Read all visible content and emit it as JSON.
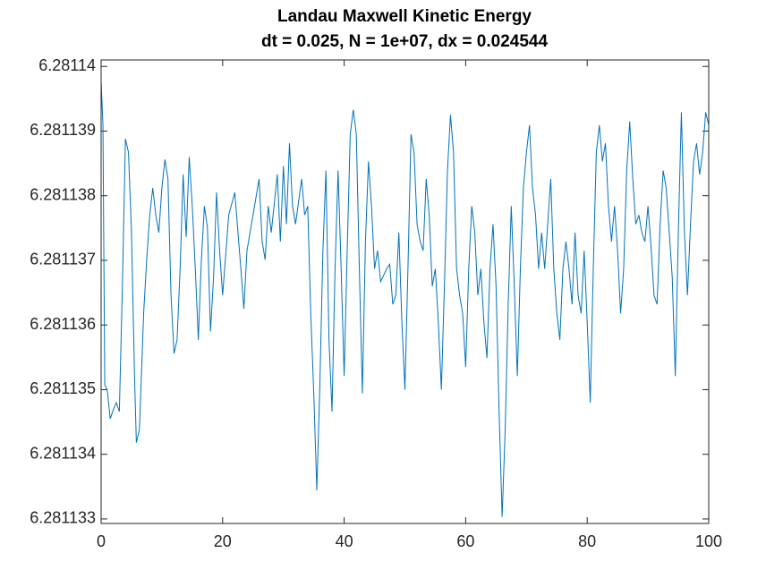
{
  "chart_data": {
    "type": "line",
    "title": "Landau Maxwell Kinetic Energy",
    "subtitle": "dt = 0.025, N = 1e+07, dx = 0.024544",
    "xlim": [
      0,
      100
    ],
    "xticks": [
      0,
      20,
      40,
      60,
      80,
      100
    ],
    "ylim": [
      6.28113293,
      6.2811401
    ],
    "yticks": [
      6.281133,
      6.281134,
      6.281135,
      6.281136,
      6.281137,
      6.281138,
      6.281139,
      6.28114
    ],
    "grid": false,
    "x": [
      0,
      0.3,
      0.6,
      1,
      1.5,
      2,
      2.5,
      3,
      3.5,
      4,
      4.5,
      5,
      5.5,
      5.8,
      6.3,
      7,
      7.5,
      8,
      8.5,
      9,
      9.5,
      10,
      10.5,
      11,
      11.5,
      12,
      12.5,
      13,
      13.5,
      14,
      14.5,
      15,
      15.5,
      16,
      16.5,
      17,
      17.5,
      18,
      18.5,
      19,
      19.5,
      20,
      21,
      22,
      23,
      23.5,
      24,
      25,
      26,
      26.5,
      27,
      27.5,
      28,
      29,
      29.5,
      30,
      30.5,
      31,
      31.5,
      32,
      33,
      33.5,
      34,
      34.5,
      35,
      35.5,
      36,
      36.5,
      37,
      37.5,
      38,
      38.5,
      39,
      39.5,
      40,
      40.5,
      41,
      41.5,
      42,
      42.5,
      43,
      43.5,
      44,
      44.5,
      45,
      45.5,
      46,
      47,
      47.5,
      48,
      48.5,
      49,
      49.5,
      50,
      50.5,
      51,
      51.5,
      52,
      52.5,
      53,
      53.5,
      54,
      54.5,
      55,
      55.5,
      56,
      56.5,
      57,
      57.5,
      58,
      58.5,
      59,
      59.5,
      60,
      60.5,
      61,
      61.5,
      62,
      62.5,
      63,
      63.5,
      64,
      64.5,
      65,
      65.5,
      66,
      66.5,
      67,
      67.5,
      68,
      68.5,
      69,
      69.5,
      70,
      70.5,
      71,
      71.5,
      72,
      72.5,
      73,
      74,
      74.5,
      75,
      75.5,
      76,
      76.5,
      77,
      77.5,
      78,
      78.5,
      79,
      79.5,
      80,
      80.5,
      81,
      81.5,
      82,
      82.5,
      83,
      83.5,
      84,
      84.5,
      85,
      85.5,
      86,
      86.5,
      87,
      87.5,
      88,
      88.5,
      89,
      89.5,
      90,
      90.5,
      91,
      91.5,
      92,
      92.5,
      93,
      93.5,
      94,
      94.5,
      95,
      95.5,
      96,
      96.5,
      97,
      97.5,
      98,
      98.5,
      99,
      99.5,
      100
    ],
    "series": [
      {
        "name": "Kinetic Energy",
        "color": "#0072BD",
        "values": [
          6.28113978,
          6.28113909,
          6.28113507,
          6.281135,
          6.28113455,
          6.28113469,
          6.2811348,
          6.28113466,
          6.2811366,
          6.28113888,
          6.28113867,
          6.28113743,
          6.28113521,
          6.28113418,
          6.28113438,
          6.28113618,
          6.28113701,
          6.2811377,
          6.28113812,
          6.2811377,
          6.28113743,
          6.28113812,
          6.28113856,
          6.28113826,
          6.28113646,
          6.28113556,
          6.28113577,
          6.28113687,
          6.28113833,
          6.28113736,
          6.2811386,
          6.28113784,
          6.28113687,
          6.28113577,
          6.28113701,
          6.28113784,
          6.2811375,
          6.2811359,
          6.28113673,
          6.28113805,
          6.28113715,
          6.28113646,
          6.2811377,
          6.28113805,
          6.28113687,
          6.28113625,
          6.28113715,
          6.2811377,
          6.28113826,
          6.28113729,
          6.28113701,
          6.28113784,
          6.28113743,
          6.28113833,
          6.28113729,
          6.28113846,
          6.28113756,
          6.28113881,
          6.28113784,
          6.28113756,
          6.28113826,
          6.2811377,
          6.28113784,
          6.28113618,
          6.28113494,
          6.28113344,
          6.28113507,
          6.28113715,
          6.28113839,
          6.28113577,
          6.28113466,
          6.28113687,
          6.28113839,
          6.28113687,
          6.28113521,
          6.28113715,
          6.28113895,
          6.28113933,
          6.28113895,
          6.28113687,
          6.28113494,
          6.28113729,
          6.28113853,
          6.28113784,
          6.28113687,
          6.28113715,
          6.28113667,
          6.28113687,
          6.28113694,
          6.28113632,
          6.28113646,
          6.28113743,
          6.28113604,
          6.281135,
          6.28113687,
          6.28113895,
          6.28113867,
          6.28113756,
          6.28113729,
          6.28113715,
          6.28113826,
          6.2811377,
          6.2811366,
          6.28113687,
          6.28113604,
          6.281135,
          6.2811366,
          6.28113839,
          6.28113925,
          6.28113867,
          6.28113687,
          6.28113646,
          6.28113618,
          6.28113535,
          6.28113687,
          6.28113784,
          6.28113743,
          6.28113646,
          6.28113687,
          6.28113604,
          6.28113549,
          6.28113687,
          6.28113756,
          6.2811366,
          6.28113466,
          6.28113303,
          6.28113438,
          6.28113632,
          6.28113784,
          6.2811366,
          6.28113521,
          6.28113687,
          6.28113812,
          6.28113867,
          6.28113909,
          6.28113812,
          6.2811377,
          6.28113687,
          6.28113743,
          6.28113687,
          6.28113826,
          6.28113687,
          6.28113618,
          6.28113577,
          6.28113687,
          6.28113729,
          6.28113687,
          6.28113632,
          6.28113743,
          6.28113646,
          6.28113618,
          6.28113715,
          6.28113604,
          6.2811348,
          6.28113687,
          6.28113867,
          6.28113909,
          6.28113853,
          6.28113881,
          6.28113784,
          6.28113729,
          6.28113784,
          6.28113715,
          6.28113618,
          6.28113687,
          6.28113839,
          6.28113915,
          6.28113826,
          6.28113756,
          6.2811377,
          6.28113743,
          6.28113729,
          6.28113784,
          6.28113722,
          6.28113646,
          6.28113632,
          6.28113756,
          6.28113839,
          6.28113812,
          6.28113743,
          6.28113673,
          6.28113521,
          6.28113743,
          6.28113929,
          6.28113743,
          6.28113646,
          6.28113756,
          6.28113853,
          6.28113881,
          6.28113833,
          6.28113867,
          6.28113929,
          6.28113909
        ]
      }
    ]
  }
}
